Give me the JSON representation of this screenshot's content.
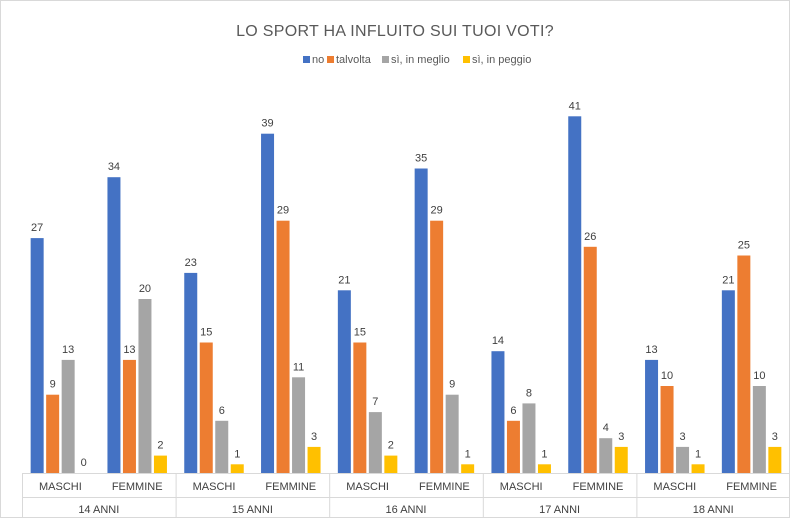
{
  "chart_data": {
    "type": "bar",
    "title": "LO SPORT HA INFLUITO SUI TUOI VOTI?",
    "groups": [
      "14 ANNI",
      "15 ANNI",
      "16 ANNI",
      "17 ANNI",
      "18 ANNI"
    ],
    "categories": [
      "MASCHI",
      "FEMMINE",
      "MASCHI",
      "FEMMINE",
      "MASCHI",
      "FEMMINE",
      "MASCHI",
      "FEMMINE",
      "MASCHI",
      "FEMMINE"
    ],
    "series": [
      {
        "name": "no",
        "color": "#4472C4",
        "values": [
          27,
          34,
          23,
          39,
          21,
          35,
          14,
          41,
          13,
          21
        ]
      },
      {
        "name": "talvolta",
        "color": "#ED7D31",
        "values": [
          9,
          13,
          15,
          29,
          15,
          29,
          6,
          26,
          10,
          25
        ]
      },
      {
        "name": "sì, in meglio",
        "color": "#A5A5A5",
        "values": [
          13,
          20,
          6,
          11,
          7,
          9,
          8,
          4,
          3,
          10
        ]
      },
      {
        "name": "sì, in peggio",
        "color": "#FFC000",
        "values": [
          0,
          2,
          1,
          3,
          2,
          1,
          1,
          3,
          1,
          3
        ]
      }
    ],
    "ylim": [
      0,
      41
    ],
    "grid": false,
    "legend": "top-center"
  }
}
